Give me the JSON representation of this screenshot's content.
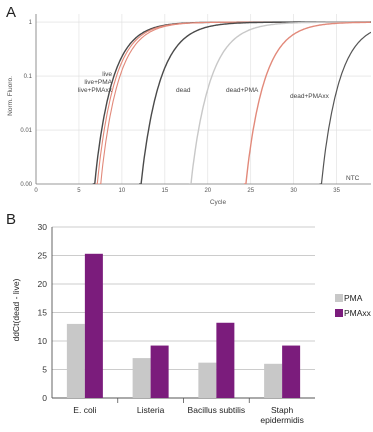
{
  "panel_a": {
    "panel_label": "A",
    "ylabel": "Norm. Fluoro.",
    "xlabel": "Cycle",
    "x_ticks": [
      "0",
      "5",
      "10",
      "15",
      "20",
      "25",
      "30",
      "35"
    ],
    "y_ticks": [
      "1",
      "0.1",
      "0.01",
      "0.00"
    ]
  },
  "panel_b": {
    "panel_label": "B"
  },
  "chart_data": [
    {
      "type": "line",
      "xlim": [
        0,
        39
      ],
      "ylim_log10": [
        -3,
        0.15
      ],
      "yscale": "log",
      "x_ticks": [
        0,
        5,
        10,
        15,
        20,
        25,
        30,
        35
      ],
      "y_ticks": [
        1,
        0.1,
        0.01,
        0.001
      ],
      "grid": true,
      "series": [
        {
          "name": "live",
          "label_lines": [
            "live",
            "live+PMA",
            "live+PMAxx"
          ],
          "color": "#4a4a4a",
          "width": 1.4,
          "x0": 6.8,
          "x1": 15.5
        },
        {
          "name": "live+PMA",
          "color": "#e2897a",
          "width": 1.1,
          "x0": 7.1,
          "x1": 15.8
        },
        {
          "name": "live+PMAxx",
          "color": "#e2897a",
          "width": 1.1,
          "x0": 7.5,
          "x1": 16.2
        },
        {
          "name": "dead",
          "label_lines": [
            "dead"
          ],
          "color": "#4a4a4a",
          "width": 1.4,
          "x0": 12.2,
          "x1": 21.5
        },
        {
          "name": "dead+PMA",
          "label_lines": [
            "dead+PMA"
          ],
          "color": "#c8c8c8",
          "width": 1.4,
          "x0": 18.0,
          "x1": 27.5
        },
        {
          "name": "dead+PMAxx",
          "label_lines": [
            "dead+PMAxx"
          ],
          "color": "#e2897a",
          "width": 1.4,
          "x0": 24.4,
          "x1": 33.5
        },
        {
          "name": "NTC",
          "label_lines": [
            "NTC"
          ],
          "color": "#555555",
          "width": 1.2,
          "x0": 33.2,
          "x1": 42.0
        }
      ]
    },
    {
      "type": "bar",
      "title": "",
      "ylabel": "ddCt(dead - live)",
      "xlabel": "",
      "ylim": [
        0,
        30
      ],
      "y_ticks": [
        0,
        5,
        10,
        15,
        20,
        25,
        30
      ],
      "grid": true,
      "legend_position": "right",
      "categories": [
        [
          "E. coli"
        ],
        [
          "Listeria"
        ],
        [
          "Bacillus subtilis"
        ],
        [
          "Staph",
          "epidermidis"
        ]
      ],
      "series": [
        {
          "name": "PMA",
          "color": "#c8c8c8",
          "values": [
            13.0,
            7.0,
            6.2,
            6.0
          ]
        },
        {
          "name": "PMAxx",
          "color": "#7b1c7c",
          "values": [
            25.3,
            9.2,
            13.2,
            9.2
          ]
        }
      ]
    }
  ]
}
